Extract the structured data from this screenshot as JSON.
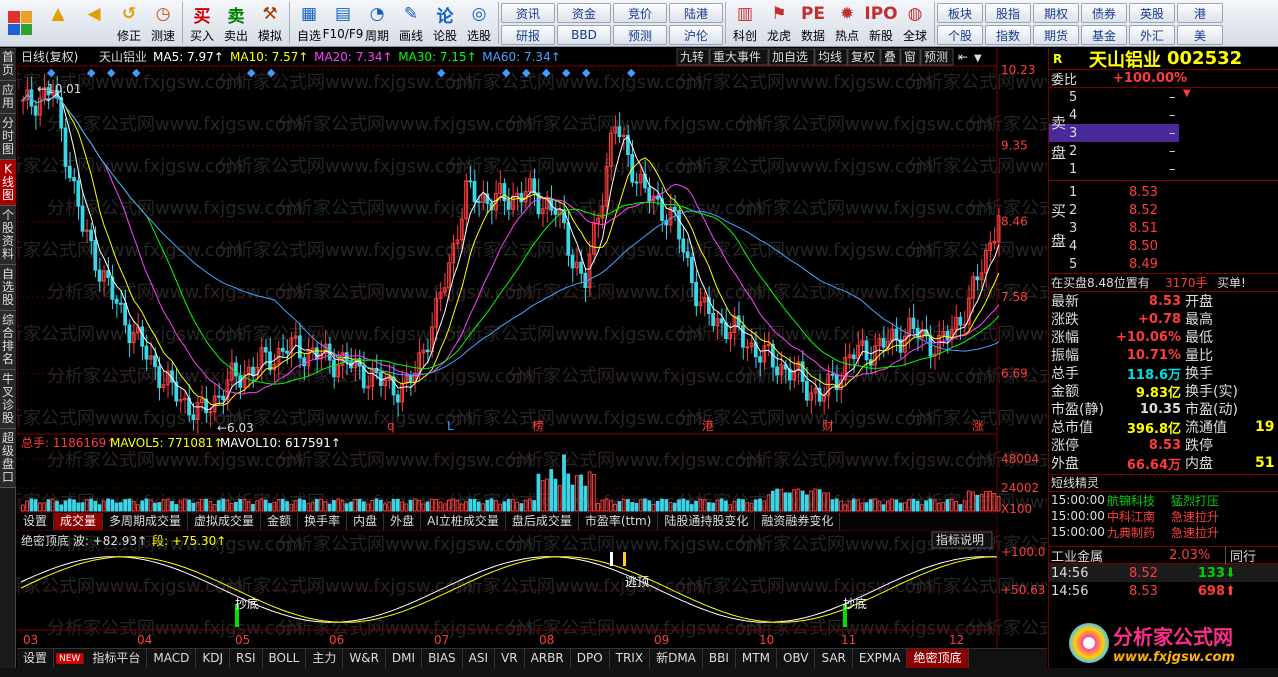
{
  "toolbar": {
    "buttons": [
      {
        "id": "up",
        "label": "",
        "icon": "arrow-up-icon",
        "color": "#e0a000"
      },
      {
        "id": "back",
        "label": "",
        "icon": "arrow-left-icon",
        "color": "#e0a000"
      },
      {
        "id": "fix",
        "label": "修正",
        "icon": "undo-icon",
        "color": "#e0a000"
      },
      {
        "id": "test",
        "label": "测速",
        "icon": "clock-icon",
        "color": "#c05000"
      },
      {
        "id": "buy",
        "label": "买入",
        "icon": "buy-icon",
        "glyph": "买",
        "color": "#d00000"
      },
      {
        "id": "sell",
        "label": "卖出",
        "icon": "sell-icon",
        "glyph": "卖",
        "color": "#008000"
      },
      {
        "id": "sim",
        "label": "模拟",
        "icon": "hammer-icon",
        "color": "#a04000"
      },
      {
        "id": "fav",
        "label": "自选",
        "icon": "star-icon",
        "color": "#1060c0"
      },
      {
        "id": "f10",
        "label": "F10/F9",
        "icon": "window-icon",
        "color": "#1060c0"
      },
      {
        "id": "cycle",
        "label": "周期",
        "icon": "cycle-icon",
        "color": "#1060c0"
      },
      {
        "id": "draw",
        "label": "画线",
        "icon": "pencil-icon",
        "color": "#1060c0"
      },
      {
        "id": "stock",
        "label": "论股",
        "icon": "quote-icon",
        "glyph": "论",
        "color": "#1060c0"
      },
      {
        "id": "pick",
        "label": "选股",
        "icon": "magnifier-chart-icon",
        "color": "#1060c0"
      }
    ],
    "quick1": [
      "资讯",
      "资金",
      "竞价",
      "陆港",
      "研报",
      "BBD",
      "预测",
      "沪伦"
    ],
    "tools": [
      {
        "id": "research",
        "label": "科创",
        "icon": "chart-icon"
      },
      {
        "id": "dragon",
        "label": "龙虎",
        "icon": "dragon-icon"
      },
      {
        "id": "data",
        "label": "数据",
        "icon": "pe-icon",
        "glyph": "PE"
      },
      {
        "id": "hot",
        "label": "热点",
        "icon": "fire-icon"
      },
      {
        "id": "ipo",
        "label": "新股",
        "icon": "ipo-icon",
        "glyph": "IPO"
      },
      {
        "id": "global",
        "label": "全球",
        "icon": "globe-icon"
      }
    ],
    "quick2": [
      "板块",
      "股指",
      "期权",
      "债券",
      "英股",
      "港",
      "个股",
      "指数",
      "期货",
      "基金",
      "外汇",
      "美"
    ]
  },
  "lefttabs": [
    "首页",
    "应用",
    "分时图",
    "K线图",
    "个股资料",
    "自选股",
    "综合排名",
    "牛叉诊股",
    "超级盘口"
  ],
  "chart": {
    "header": {
      "period": "日线(复权)",
      "name": "天山铝业",
      "ma": [
        {
          "label": "MA5: 7.97",
          "color": "#ffffff"
        },
        {
          "label": "MA10: 7.57",
          "color": "#ffff00"
        },
        {
          "label": "MA20: 7.34",
          "color": "#ff40ff"
        },
        {
          "label": "MA30: 7.15",
          "color": "#00ff00"
        },
        {
          "label": "MA60: 7.34",
          "color": "#4aa3ff"
        }
      ]
    },
    "toptools": [
      "九转",
      "重大事件",
      "加自选",
      "均线",
      "复权",
      "叠",
      "窗",
      "预测"
    ],
    "yticks": [
      "10.23",
      "9.35",
      "8.46",
      "7.58",
      "6.69"
    ],
    "high_label": "10.01",
    "low_label": "6.03",
    "markers": [
      "q",
      "L",
      "榜",
      "港",
      "财",
      "涨"
    ],
    "watermark": "分析家公式网www.fxjgsw.com",
    "vol_header": [
      {
        "label": "总手: 1186169",
        "color": "#ff3c3c"
      },
      {
        "label": "MAVOL5: 771081",
        "color": "#ffff00"
      },
      {
        "label": "MAVOL10: 617591",
        "color": "#ffffff"
      }
    ],
    "vol_yticks": [
      "48004",
      "24002",
      "X100"
    ],
    "subtabs": [
      "设置",
      "成交量",
      "多周期成交量",
      "虚拟成交量",
      "金额",
      "换手率",
      "内盘",
      "外盘",
      "AI立桩成交量",
      "盘后成交量",
      "市盈率(ttm)",
      "陆股通持股变化",
      "融资融券变化"
    ],
    "ind_header": {
      "name": "绝密顶底",
      "wave": "波: +82.93",
      "seg": "段: +75.30"
    },
    "ind_button": "指标说明",
    "ind_yticks": [
      "+100.0",
      "+50.63"
    ],
    "ind_labels": {
      "bottom": "抄底",
      "top": "逃顶"
    },
    "xticks": [
      "03",
      "04",
      "05",
      "06",
      "07",
      "08",
      "09",
      "10",
      "11",
      "12"
    ]
  },
  "chart_data": [
    {
      "type": "candlestick",
      "title": "天山铝业 002532 日线(复权)",
      "ylim": [
        6.03,
        10.23
      ],
      "x": [
        "03",
        "04",
        "05",
        "06",
        "07",
        "08",
        "09",
        "10",
        "11",
        "12"
      ],
      "close": [
        9.4,
        7.8,
        6.6,
        7.0,
        6.9,
        8.8,
        8.9,
        7.4,
        7.0,
        8.53
      ],
      "series": [
        {
          "name": "MA5",
          "value": 7.97
        },
        {
          "name": "MA10",
          "value": 7.57
        },
        {
          "name": "MA20",
          "value": 7.34
        },
        {
          "name": "MA30",
          "value": 7.15
        },
        {
          "name": "MA60",
          "value": 7.34
        }
      ],
      "high": 10.01,
      "low": 6.03
    },
    {
      "type": "bar",
      "title": "成交量",
      "ylim": [
        0,
        48004
      ],
      "unit": "X100",
      "last": 1186169,
      "MAVOL5": 771081,
      "MAVOL10": 617591
    },
    {
      "type": "line",
      "title": "绝密顶底",
      "ylim": [
        0,
        100
      ],
      "wave": 82.93,
      "seg": 75.3
    }
  ],
  "quote": {
    "name": "天山铝业",
    "code": "002532",
    "commission": {
      "label": "委比",
      "value": "+100.00%"
    },
    "sell_label": "卖盘",
    "buy_label": "买盘",
    "sells": [
      {
        "lv": "5",
        "price": "",
        "vol": "–"
      },
      {
        "lv": "4",
        "price": "",
        "vol": "–"
      },
      {
        "lv": "3",
        "price": "",
        "vol": "–"
      },
      {
        "lv": "2",
        "price": "",
        "vol": "–"
      },
      {
        "lv": "1",
        "price": "",
        "vol": "–"
      }
    ],
    "buys": [
      {
        "lv": "1",
        "price": "8.53",
        "vol": ""
      },
      {
        "lv": "2",
        "price": "8.52",
        "vol": ""
      },
      {
        "lv": "3",
        "price": "8.51",
        "vol": ""
      },
      {
        "lv": "4",
        "price": "8.50",
        "vol": ""
      },
      {
        "lv": "5",
        "price": "8.49",
        "vol": ""
      }
    ],
    "notice": {
      "text": "在买盘8.48位置有",
      "vol": "3170手",
      "tag": "买单!"
    },
    "stats": [
      {
        "k": "最新",
        "v": "8.53",
        "k2": "开盘",
        "v2": "",
        "c": "red"
      },
      {
        "k": "涨跌",
        "v": "+0.78",
        "k2": "最高",
        "v2": "",
        "c": "red"
      },
      {
        "k": "涨幅",
        "v": "+10.06%",
        "k2": "最低",
        "v2": "",
        "c": "red"
      },
      {
        "k": "振幅",
        "v": "10.71%",
        "k2": "量比",
        "v2": "",
        "c": "red"
      },
      {
        "k": "总手",
        "v": "118.6万",
        "k2": "换手",
        "v2": "",
        "c": "cyan"
      },
      {
        "k": "金额",
        "v": "9.83亿",
        "k2": "换手(实)",
        "v2": "",
        "c": "yel"
      },
      {
        "k": "市盈(静)",
        "v": "10.35",
        "k2": "市盈(动)",
        "v2": "",
        "c": "wht"
      },
      {
        "k": "总市值",
        "v": "396.8亿",
        "k2": "流通值",
        "v2": "19",
        "c": "yel"
      },
      {
        "k": "涨停",
        "v": "8.53",
        "k2": "跌停",
        "v2": "",
        "c": "red"
      },
      {
        "k": "外盘",
        "v": "66.64万",
        "k2": "内盘",
        "v2": "51",
        "c": "red"
      }
    ],
    "short_title": "短线精灵",
    "short": [
      {
        "t": "15:00:00",
        "name": "航锦科技",
        "ev": "猛烈打压",
        "c": "#00d000"
      },
      {
        "t": "15:00:00",
        "name": "中科江南",
        "ev": "急速拉升",
        "c": "#ff3c3c"
      },
      {
        "t": "15:00:00",
        "name": "九典制药",
        "ev": "急速拉升",
        "c": "#ff3c3c"
      }
    ],
    "sector": {
      "name": "工业金属",
      "pct": "2.03%",
      "tab": "同行"
    },
    "ticks": [
      {
        "t": "14:56",
        "p": "8.52",
        "v": "133",
        "dir": "down"
      },
      {
        "t": "14:56",
        "p": "8.53",
        "v": "698",
        "dir": "up"
      }
    ],
    "logo_text": "分析家公式网",
    "logo_url": "www.fxjgsw.com"
  },
  "bottomtabs": [
    "设置",
    "NEW",
    "指标平台",
    "MACD",
    "KDJ",
    "RSI",
    "BOLL",
    "主力",
    "W&R",
    "DMI",
    "BIAS",
    "ASI",
    "VR",
    "ARBR",
    "DPO",
    "TRIX",
    "新DMA",
    "BBI",
    "MTM",
    "OBV",
    "SAR",
    "EXPMA",
    "绝密顶底"
  ]
}
